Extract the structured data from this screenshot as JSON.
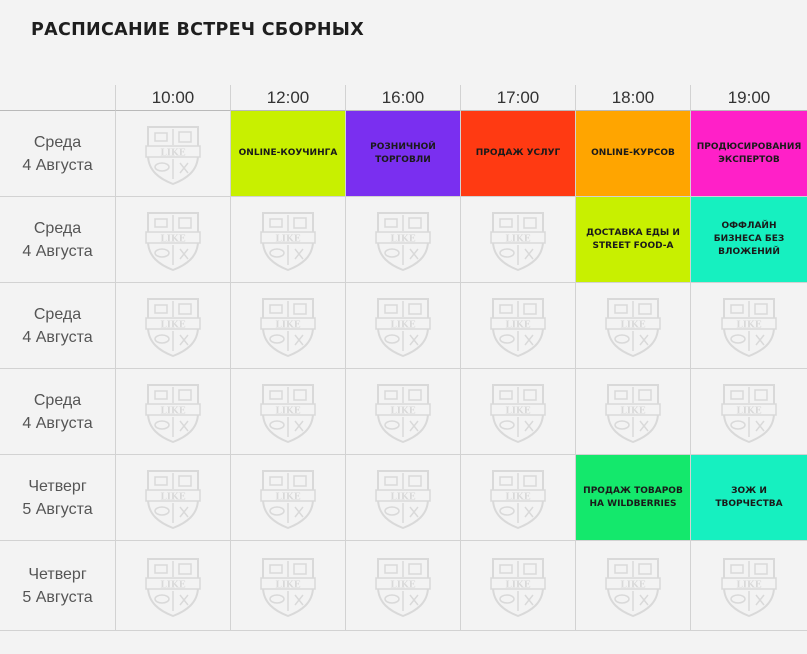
{
  "title": "РАСПИСАНИЕ ВСТРЕЧ СБОРНЫХ",
  "times": [
    "10:00",
    "12:00",
    "16:00",
    "17:00",
    "18:00",
    "19:00"
  ],
  "rows": [
    {
      "day": "Среда",
      "date": "4 Августа",
      "events": [
        null,
        {
          "text": "ONLINE-КОУЧИНГА",
          "color": "#c8f000"
        },
        {
          "text": "РОЗНИЧНОЙ ТОРГОВЛИ",
          "color": "#7a2ff0"
        },
        {
          "text": "ПРОДАЖ УСЛУГ",
          "color": "#ff3a12"
        },
        {
          "text": "ONLINE-КУРСОВ",
          "color": "#ffa500"
        },
        {
          "text": "ПРОДЮСИРОВАНИЯ ЭКСПЕРТОВ",
          "color": "#ff20c8"
        }
      ]
    },
    {
      "day": "Среда",
      "date": "4 Августа",
      "events": [
        null,
        null,
        null,
        null,
        {
          "text": "ДОСТАВКА ЕДЫ И STREET FOOD-А",
          "color": "#c8f000"
        },
        {
          "text": "ОФФЛАЙН БИЗНЕСА БЕЗ ВЛОЖЕНИЙ",
          "color": "#16f0c0"
        }
      ]
    },
    {
      "day": "Среда",
      "date": "4 Августа",
      "events": [
        null,
        null,
        null,
        null,
        null,
        null
      ]
    },
    {
      "day": "Среда",
      "date": "4 Августа",
      "events": [
        null,
        null,
        null,
        null,
        null,
        null
      ]
    },
    {
      "day": "Четверг",
      "date": "5 Августа",
      "events": [
        null,
        null,
        null,
        null,
        {
          "text": "ПРОДАЖ ТОВАРОВ НА WILDBERRIES",
          "color": "#14e86c"
        },
        {
          "text": "ЗОЖ И ТВОРЧЕСТВА",
          "color": "#16f0c0"
        }
      ]
    },
    {
      "day": "Четверг",
      "date": "5 Августа",
      "events": [
        null,
        null,
        null,
        null,
        null,
        null
      ]
    }
  ],
  "watermark": {
    "icon": "like-shield-icon",
    "text": "LIKE",
    "color": "#c4c4c4"
  }
}
